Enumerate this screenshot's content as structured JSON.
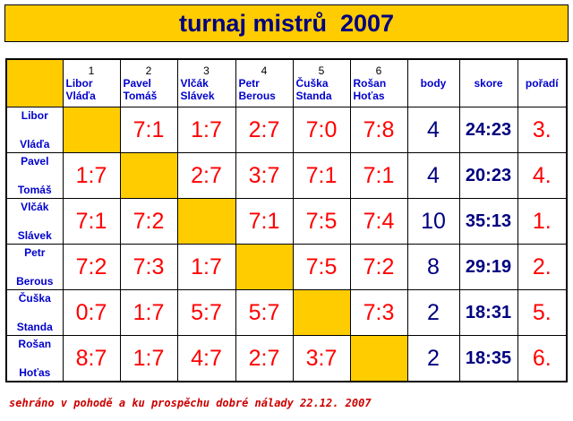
{
  "title": "turnaj mistrů  2007",
  "table": {
    "header": {
      "players": [
        {
          "number": "1",
          "name": [
            "Libor",
            "Vláďa"
          ]
        },
        {
          "number": "2",
          "name": [
            "Pavel",
            "Tomáš"
          ]
        },
        {
          "number": "3",
          "name": [
            "Vlčák",
            "Slávek"
          ]
        },
        {
          "number": "4",
          "name": [
            "Petr",
            "Berous"
          ]
        },
        {
          "number": "5",
          "name": [
            "Čuška",
            "Standa"
          ]
        },
        {
          "number": "6",
          "name": [
            "Rošan",
            "Hoťas"
          ]
        }
      ],
      "body": "body",
      "skore": "skore",
      "poradi": "pořadí"
    },
    "rows": [
      {
        "name": [
          "Libor",
          "Vláďa"
        ],
        "scores": [
          null,
          "7:1",
          "1:7",
          "2:7",
          "7:0",
          "7:8"
        ],
        "body": 4,
        "skore": "24:23",
        "poradi": "3."
      },
      {
        "name": [
          "Pavel",
          "Tomáš"
        ],
        "scores": [
          "1:7",
          null,
          "2:7",
          "3:7",
          "7:1",
          "7:1"
        ],
        "body": 4,
        "skore": "20:23",
        "poradi": "4."
      },
      {
        "name": [
          "Vlčák",
          "Slávek"
        ],
        "scores": [
          "7:1",
          "7:2",
          null,
          "7:1",
          "7:5",
          "7:4"
        ],
        "body": 10,
        "skore": "35:13",
        "poradi": "1."
      },
      {
        "name": [
          "Petr",
          "Berous"
        ],
        "scores": [
          "7:2",
          "7:3",
          "1:7",
          null,
          "7:5",
          "7:2"
        ],
        "body": 8,
        "skore": "29:19",
        "poradi": "2."
      },
      {
        "name": [
          "Čuška",
          "Standa"
        ],
        "scores": [
          "0:7",
          "1:7",
          "5:7",
          "5:7",
          null,
          "7:3"
        ],
        "body": 2,
        "skore": "18:31",
        "poradi": "5."
      },
      {
        "name": [
          "Rošan",
          "Hoťas"
        ],
        "scores": [
          "8:7",
          "1:7",
          "4:7",
          "2:7",
          "3:7",
          null
        ],
        "body": 2,
        "skore": "18:35",
        "poradi": "6."
      }
    ]
  },
  "footer": "sehráno v pohodě a ku prospěchu dobré nálady 22.12. 2007"
}
